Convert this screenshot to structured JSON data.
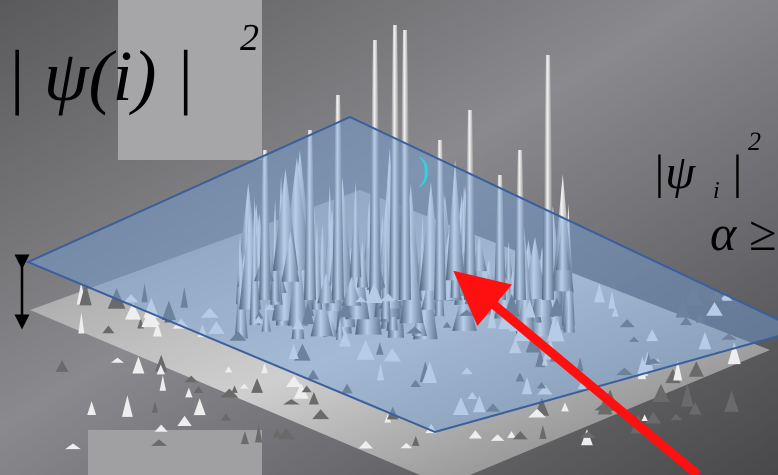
{
  "formula_left": {
    "base": "| ψ(i) |",
    "power": "2"
  },
  "formula_right": {
    "open": "|ψ",
    "sub": "i",
    "close": "|",
    "power": "2"
  },
  "condition": "α ≥",
  "peak_mark": ")"
}
